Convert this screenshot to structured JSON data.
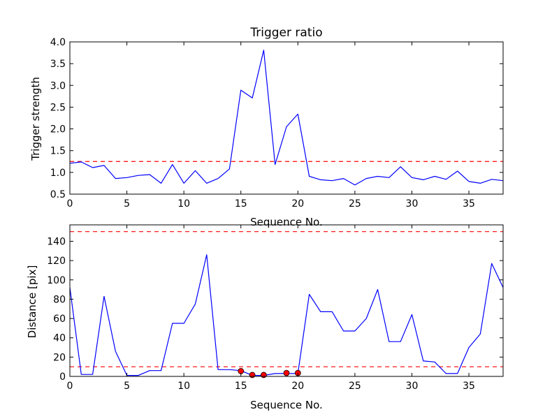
{
  "chart_data": [
    {
      "type": "line",
      "title": "Trigger ratio",
      "xlabel": "Sequence No.",
      "ylabel": "Trigger strength",
      "xlim": [
        0,
        38
      ],
      "ylim": [
        0.5,
        4.0
      ],
      "xticks": [
        0,
        5,
        10,
        15,
        20,
        25,
        30,
        35
      ],
      "xtick_labels": [
        "0",
        "5",
        "10",
        "15",
        "20",
        "25",
        "30",
        "35"
      ],
      "yticks": [
        0.5,
        1.0,
        1.5,
        2.0,
        2.5,
        3.0,
        3.5,
        4.0
      ],
      "ytick_labels": [
        "0.5",
        "1.0",
        "1.5",
        "2.0",
        "2.5",
        "3.0",
        "3.5",
        "4.0"
      ],
      "grid": false,
      "series": [
        {
          "color": "#0000ff",
          "style": "solid",
          "x": [
            0,
            1,
            2,
            3,
            4,
            5,
            6,
            7,
            8,
            9,
            10,
            11,
            12,
            13,
            14,
            15,
            16,
            17,
            18,
            19,
            20,
            21,
            22,
            23,
            24,
            25,
            26,
            27,
            28,
            29,
            30,
            31,
            32,
            33,
            34,
            35,
            36,
            37,
            38
          ],
          "y": [
            1.21,
            1.24,
            1.11,
            1.16,
            0.86,
            0.88,
            0.93,
            0.95,
            0.75,
            1.18,
            0.75,
            1.04,
            0.75,
            0.86,
            1.08,
            2.89,
            2.71,
            3.81,
            1.18,
            2.05,
            2.34,
            0.91,
            0.83,
            0.81,
            0.86,
            0.71,
            0.86,
            0.91,
            0.88,
            1.13,
            0.88,
            0.83,
            0.91,
            0.84,
            1.03,
            0.79,
            0.75,
            0.84,
            0.81
          ]
        }
      ],
      "hlines": [
        {
          "y": 1.25,
          "color": "#ff0000",
          "style": "dashed"
        }
      ]
    },
    {
      "type": "line",
      "title": "",
      "xlabel": "Sequence No.",
      "ylabel": "Distance [pix]",
      "xlim": [
        0,
        38
      ],
      "ylim": [
        0,
        157
      ],
      "xticks": [
        0,
        5,
        10,
        15,
        20,
        25,
        30,
        35
      ],
      "xtick_labels": [
        "0",
        "5",
        "10",
        "15",
        "20",
        "25",
        "30",
        "35"
      ],
      "yticks": [
        0,
        20,
        40,
        60,
        80,
        100,
        120,
        140
      ],
      "ytick_labels": [
        "0",
        "20",
        "40",
        "60",
        "80",
        "100",
        "120",
        "140"
      ],
      "grid": false,
      "series": [
        {
          "color": "#0000ff",
          "style": "solid",
          "x": [
            0,
            1,
            2,
            3,
            4,
            5,
            6,
            7,
            8,
            9,
            10,
            11,
            12,
            13,
            14,
            15,
            16,
            17,
            18,
            19,
            20,
            21,
            22,
            23,
            24,
            25,
            26,
            27,
            28,
            29,
            30,
            31,
            32,
            33,
            34,
            35,
            36,
            37,
            38
          ],
          "y": [
            92,
            2,
            2,
            83,
            26,
            1,
            1,
            6,
            6,
            55,
            55,
            75,
            126,
            7,
            7,
            6,
            1,
            1,
            3,
            3,
            3,
            85,
            67,
            67,
            47,
            47,
            60,
            90,
            36,
            36,
            64,
            16,
            15,
            3,
            3,
            30,
            44,
            117,
            92
          ]
        }
      ],
      "markers": {
        "color": "#ff0000",
        "x": [
          15,
          16,
          17,
          19,
          20
        ],
        "y": [
          5.5,
          1.5,
          1.5,
          3.5,
          3.5
        ]
      },
      "hlines": [
        {
          "y": 150,
          "color": "#ff0000",
          "style": "dashed"
        },
        {
          "y": 10,
          "color": "#ff0000",
          "style": "dashed"
        }
      ]
    }
  ]
}
